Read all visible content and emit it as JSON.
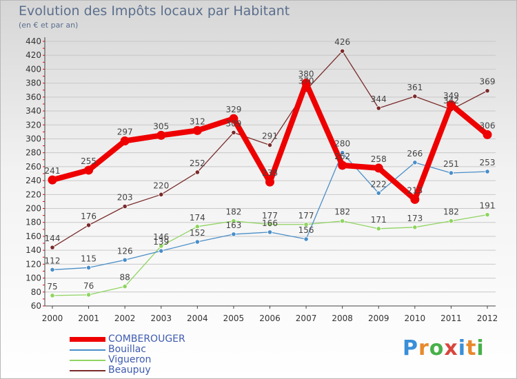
{
  "header": {
    "title": "Evolution des Impôts locaux par Habitant",
    "subtitle": "(en € et par an)"
  },
  "logo": {
    "text": "Proxiti",
    "letter_colors": [
      "#3a8fd8",
      "#e8892c",
      "#48b04a",
      "#d8463c",
      "#3a8fd8",
      "#e8892c",
      "#48b04a"
    ]
  },
  "chart_data": {
    "type": "line",
    "title": "Evolution des Impôts locaux par Habitant",
    "subtitle": "(en € et par an)",
    "xlabel": "",
    "ylabel": "",
    "x": [
      "2000",
      "2001",
      "2002",
      "2003",
      "2004",
      "2005",
      "2006",
      "2007",
      "2008",
      "2009",
      "2010",
      "2011",
      "2012"
    ],
    "ylim": [
      60,
      440
    ],
    "yticks": [
      60,
      80,
      100,
      120,
      140,
      160,
      180,
      200,
      220,
      240,
      260,
      280,
      300,
      320,
      340,
      360,
      380,
      400,
      420,
      440
    ],
    "grid": "horizontal",
    "legend_position": "bottom-left",
    "series": [
      {
        "name": "COMBEROUGER",
        "color": "#ee0000",
        "values": [
          241,
          255,
          297,
          305,
          312,
          329,
          238,
          380,
          262,
          258,
          213,
          349,
          306
        ]
      },
      {
        "name": "Bouillac",
        "color": "#4a8ec8",
        "values": [
          112,
          115,
          126,
          139,
          152,
          163,
          166,
          156,
          280,
          222,
          266,
          251,
          253
        ]
      },
      {
        "name": "Vigueron",
        "color": "#8fd460",
        "values": [
          75,
          76,
          88,
          146,
          174,
          182,
          177,
          177,
          182,
          171,
          173,
          182,
          191
        ]
      },
      {
        "name": "Beaupuy",
        "color": "#7a2a2a",
        "values": [
          144,
          176,
          203,
          220,
          252,
          309,
          291,
          370,
          426,
          344,
          361,
          342,
          369
        ]
      }
    ]
  }
}
